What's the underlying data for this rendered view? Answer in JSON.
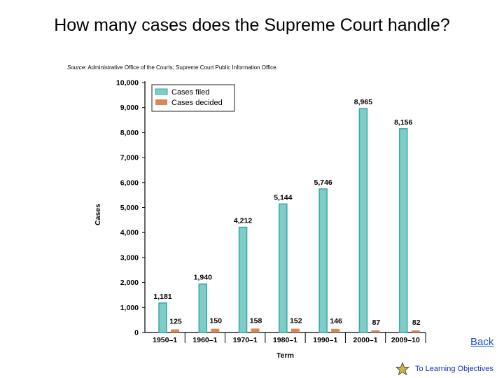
{
  "slide": {
    "title": "How many cases does the Supreme Court handle?",
    "source_label": "Source:",
    "source_text": "Administrative Office of the Courts; Supreme Court Public Information Office."
  },
  "nav": {
    "back_label": "Back",
    "objectives_label": "To Learning Objectives"
  },
  "colors": {
    "filed": "#7ecdc8",
    "filed_edge": "#3aa7a1",
    "decided": "#d6885a",
    "axis": "#000000",
    "link": "#1a4fd6",
    "star": "#c9b64a"
  },
  "icons": {
    "star": "star-icon"
  },
  "chart_data": {
    "type": "bar",
    "xlabel": "Term",
    "ylabel": "Cases",
    "ylim": [
      0,
      10000
    ],
    "yticks": [
      "0",
      "1,000",
      "2,000",
      "3,000",
      "4,000",
      "5,000",
      "6,000",
      "7,000",
      "8,000",
      "9,000",
      "10,000"
    ],
    "categories": [
      "1950–1",
      "1960–1",
      "1970–1",
      "1980–1",
      "1990–1",
      "2000–1",
      "2009–10"
    ],
    "series": [
      {
        "name": "Cases filed",
        "values": [
          1181,
          1940,
          4212,
          5144,
          5746,
          8965,
          8156
        ],
        "labels": [
          "1,181",
          "1,940",
          "4,212",
          "5,144",
          "5,746",
          "8,965",
          "8,156"
        ]
      },
      {
        "name": "Cases decided",
        "values": [
          125,
          150,
          158,
          152,
          146,
          87,
          82
        ],
        "labels": [
          "125",
          "150",
          "158",
          "152",
          "146",
          "87",
          "82"
        ]
      }
    ],
    "legend_position": "top-left",
    "grid": false
  }
}
